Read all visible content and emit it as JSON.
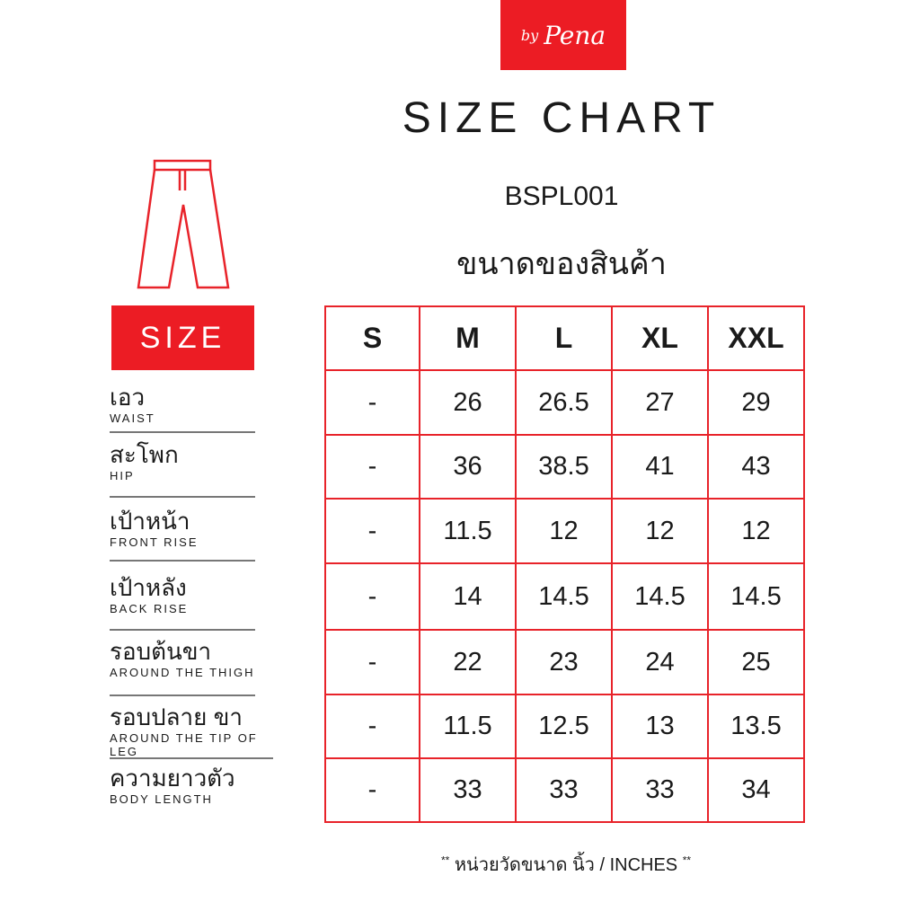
{
  "brand": {
    "logo_text": "by Pena",
    "color": "#ec1c24"
  },
  "header": {
    "title": "SIZE CHART",
    "product_code": "BSPL001",
    "subtitle_thai": "ขนาดของสินค้า"
  },
  "icon": "pants-outline-icon",
  "size_label": "SIZE",
  "sizes": [
    "S",
    "M",
    "L",
    "XL",
    "XXL"
  ],
  "rows": [
    {
      "th": "เอว",
      "en": "WAIST",
      "values": [
        "-",
        "26",
        "26.5",
        "27",
        "29"
      ]
    },
    {
      "th": "สะโพก",
      "en": "HIP",
      "values": [
        "-",
        "36",
        "38.5",
        "41",
        "43"
      ]
    },
    {
      "th": "เป้าหน้า",
      "en": "FRONT RISE",
      "values": [
        "-",
        "11.5",
        "12",
        "12",
        "12"
      ]
    },
    {
      "th": "เป้าหลัง",
      "en": "BACK RISE",
      "values": [
        "-",
        "14",
        "14.5",
        "14.5",
        "14.5"
      ]
    },
    {
      "th": "รอบต้นขา",
      "en": "AROUND THE THIGH",
      "values": [
        "-",
        "22",
        "23",
        "24",
        "25"
      ]
    },
    {
      "th": "รอบปลาย ขา",
      "en": "AROUND THE TIP OF LEG",
      "values": [
        "-",
        "11.5",
        "12.5",
        "13",
        "13.5"
      ]
    },
    {
      "th": "ความยาวตัว",
      "en": "BODY LENGTH",
      "values": [
        "-",
        "33",
        "33",
        "33",
        "34"
      ]
    }
  ],
  "footer": {
    "prefix": "**",
    "text": "หน่วยวัดขนาด  นิ้ว / INCHES",
    "suffix": "**"
  }
}
